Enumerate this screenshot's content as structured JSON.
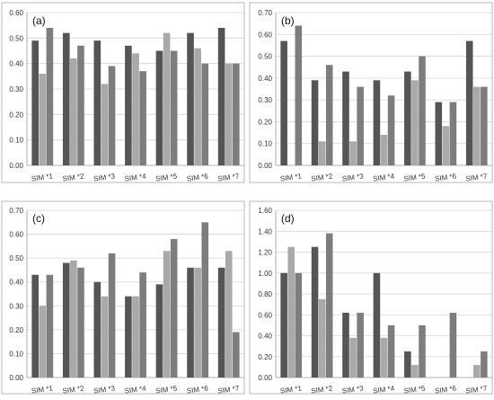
{
  "chart_data": [
    {
      "type": "bar",
      "label": "(a)",
      "categories": [
        "SIM *1",
        "SIM *2",
        "SIM *3",
        "SIM *4",
        "SIM *5",
        "SIM *6",
        "SIM *7"
      ],
      "ylim": [
        0,
        0.6
      ],
      "yticks": [
        "0.00",
        "0.10",
        "0.20",
        "0.30",
        "0.40",
        "0.50",
        "0.60"
      ],
      "grid": true,
      "series": [
        {
          "color": "#555555",
          "values": [
            0.49,
            0.52,
            0.49,
            0.47,
            0.45,
            0.52,
            0.54
          ]
        },
        {
          "color": "#a9a9a9",
          "values": [
            0.36,
            0.42,
            0.32,
            0.44,
            0.52,
            0.46,
            0.4
          ]
        },
        {
          "color": "#7d7d7d",
          "values": [
            0.54,
            0.47,
            0.39,
            0.37,
            0.45,
            0.4,
            0.4
          ]
        }
      ]
    },
    {
      "type": "bar",
      "label": "(b)",
      "categories": [
        "SIM *1",
        "SIM *2",
        "SIM *3",
        "SIM *4",
        "SIM *5",
        "SIM *6",
        "SIM *7"
      ],
      "ylim": [
        0,
        0.7
      ],
      "yticks": [
        "0.00",
        "0.10",
        "0.20",
        "0.30",
        "0.40",
        "0.50",
        "0.60",
        "0.70"
      ],
      "grid": true,
      "series": [
        {
          "color": "#555555",
          "values": [
            0.57,
            0.39,
            0.43,
            0.39,
            0.43,
            0.29,
            0.57
          ]
        },
        {
          "color": "#a9a9a9",
          "values": [
            0.0,
            0.11,
            0.11,
            0.14,
            0.39,
            0.18,
            0.36
          ]
        },
        {
          "color": "#7d7d7d",
          "values": [
            0.64,
            0.46,
            0.36,
            0.32,
            0.5,
            0.29,
            0.36
          ]
        }
      ]
    },
    {
      "type": "bar",
      "label": "(c)",
      "categories": [
        "SIM *1",
        "SIM *2",
        "SIM *3",
        "SIM *4",
        "SIM *5",
        "SIM *6",
        "SIM *7"
      ],
      "ylim": [
        0,
        0.7
      ],
      "yticks": [
        "0.00",
        "0.10",
        "0.20",
        "0.30",
        "0.40",
        "0.50",
        "0.60",
        "0.70"
      ],
      "grid": true,
      "series": [
        {
          "color": "#555555",
          "values": [
            0.43,
            0.48,
            0.4,
            0.34,
            0.39,
            0.46,
            0.46
          ]
        },
        {
          "color": "#a9a9a9",
          "values": [
            0.3,
            0.49,
            0.34,
            0.34,
            0.53,
            0.46,
            0.53
          ]
        },
        {
          "color": "#7d7d7d",
          "values": [
            0.43,
            0.46,
            0.52,
            0.44,
            0.58,
            0.65,
            0.19
          ]
        }
      ]
    },
    {
      "type": "bar",
      "label": "(d)",
      "categories": [
        "SIM *1",
        "SIM *2",
        "SIM *3",
        "SIM *4",
        "SIM *5",
        "SIM *6",
        "SIM *7"
      ],
      "ylim": [
        0,
        1.6
      ],
      "yticks": [
        "0.00",
        "0.20",
        "0.40",
        "0.60",
        "0.80",
        "1.00",
        "1.20",
        "1.40",
        "1.60"
      ],
      "grid": true,
      "series": [
        {
          "color": "#555555",
          "values": [
            1.0,
            1.25,
            0.62,
            1.0,
            0.25,
            0.0,
            0.0
          ]
        },
        {
          "color": "#a9a9a9",
          "values": [
            1.25,
            0.75,
            0.38,
            0.38,
            0.12,
            0.0,
            0.12
          ]
        },
        {
          "color": "#7d7d7d",
          "values": [
            1.0,
            1.38,
            0.62,
            0.5,
            0.5,
            0.62,
            0.25
          ]
        }
      ]
    }
  ]
}
